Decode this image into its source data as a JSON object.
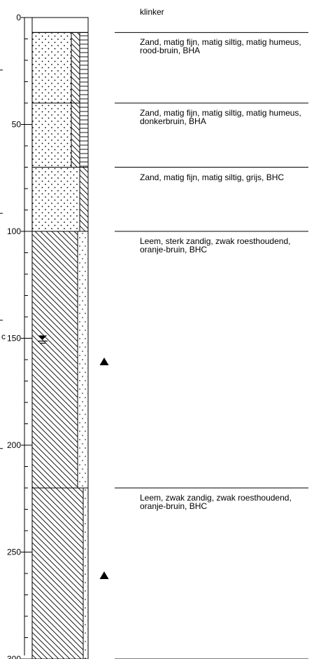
{
  "depth_axis": {
    "unit_label": "c",
    "min": 0,
    "max": 300,
    "tick_labels": [
      "0",
      "50",
      "100",
      "150",
      "200",
      "250",
      "300"
    ]
  },
  "top_layer": {
    "depth_from": 0,
    "depth_to": 7,
    "description": "klinker"
  },
  "layers": [
    {
      "depth_from": 7,
      "depth_to": 40,
      "description": "Zand, matig fijn, matig siltig, matig humeus, rood-bruin, BHA",
      "pattern": "sand-dotted-with-humus"
    },
    {
      "depth_from": 40,
      "depth_to": 70,
      "description": "Zand, matig fijn, matig siltig, matig humeus, donkerbruin, BHA",
      "pattern": "sand-dotted-with-humus"
    },
    {
      "depth_from": 70,
      "depth_to": 100,
      "description": "Zand, matig fijn, matig siltig, grijs, BHC",
      "pattern": "sand-dotted-with-silt"
    },
    {
      "depth_from": 100,
      "depth_to": 220,
      "description": "Leem, sterk zandig, zwak roesthoudend, oranje-bruin, BHC",
      "pattern": "loam-hatched-sandy"
    },
    {
      "depth_from": 220,
      "depth_to": 300,
      "description": "Leem, zwak zandig, zwak roesthoudend, oranje-bruin, BHC",
      "pattern": "loam-hatched-weakly-sandy"
    }
  ],
  "groundwater_level_depth": 150,
  "sample_markers_depths": [
    161,
    261
  ],
  "colors": {
    "ink": "#000000",
    "background": "#ffffff"
  }
}
